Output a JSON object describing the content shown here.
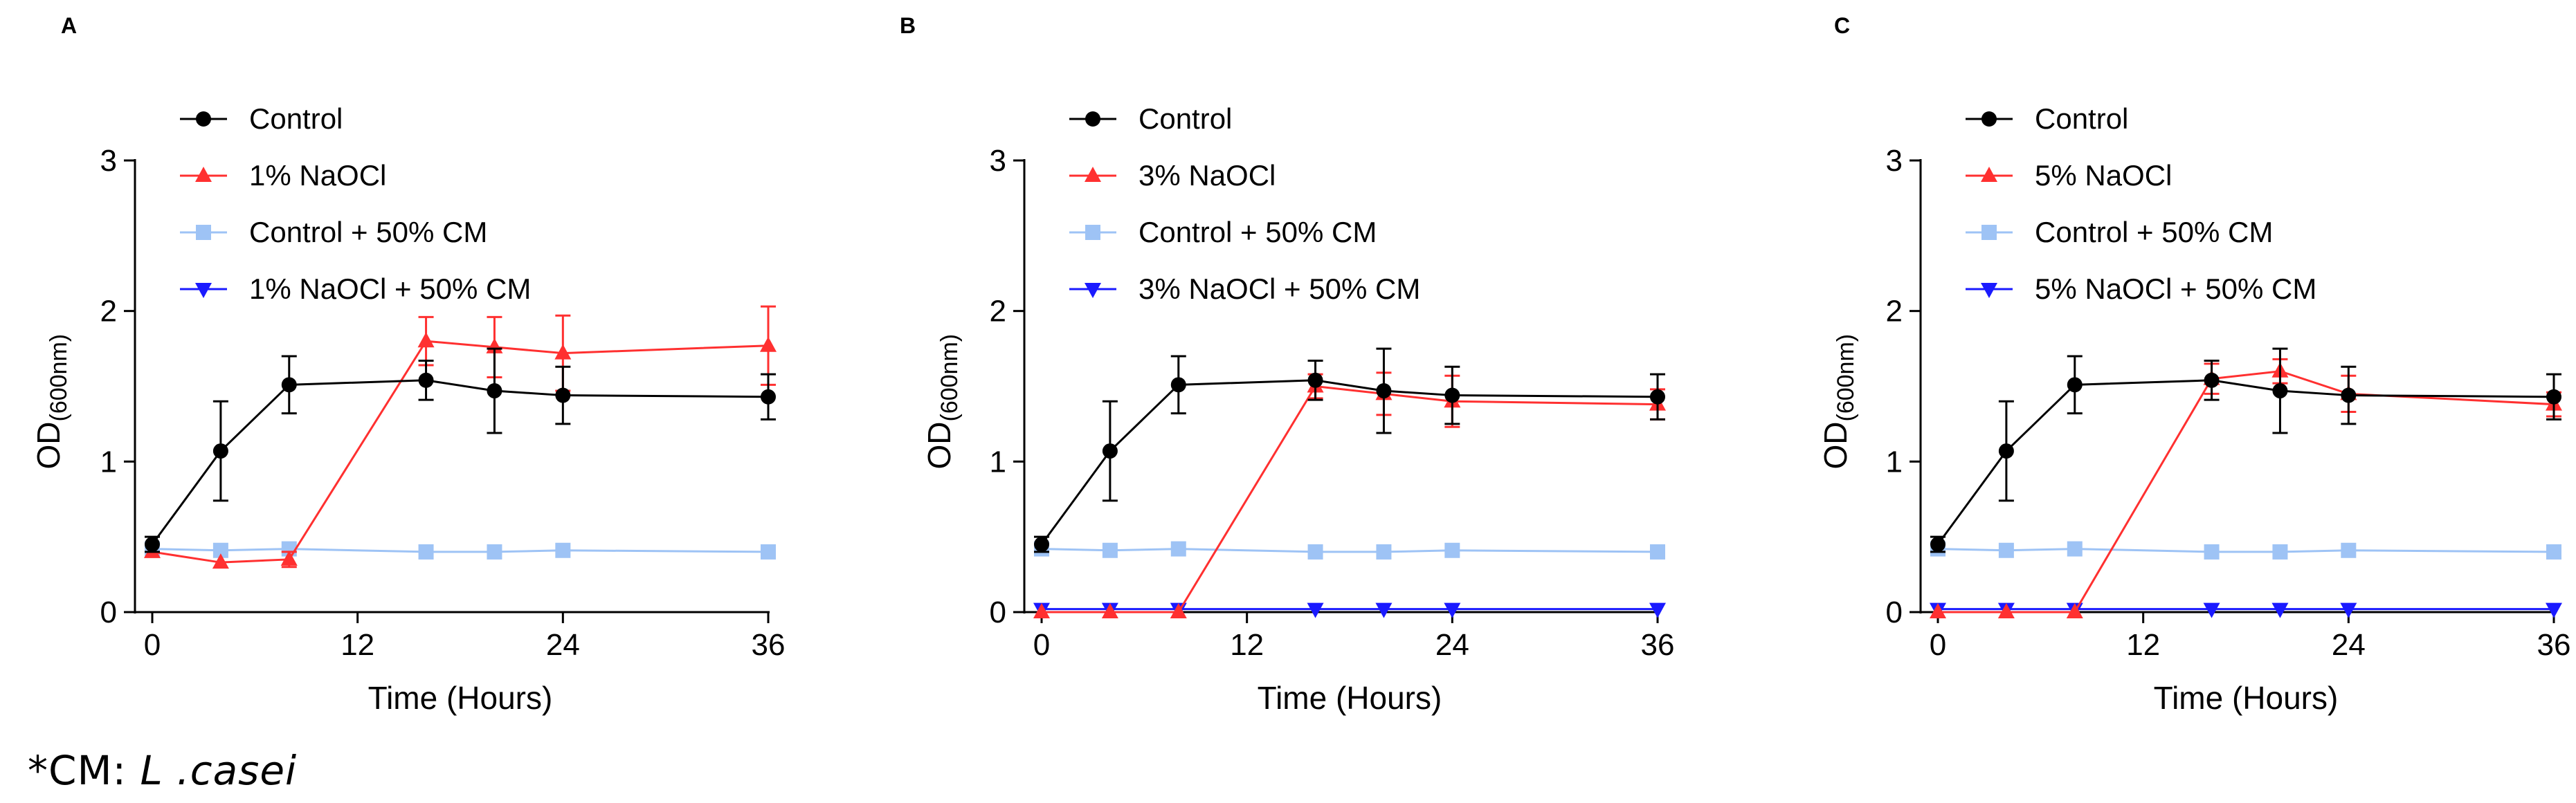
{
  "colors": {
    "control": "#000000",
    "naocl": "#ff3030",
    "control_cm": "#9ec3f5",
    "naocl_cm": "#1a1aff"
  },
  "footnote": {
    "prefix": "*CM: ",
    "organism": "L .casei"
  },
  "chart_data": [
    {
      "type": "line",
      "panel_label": "A",
      "xlabel": "Time (Hours)",
      "ylabel_main": "OD",
      "ylabel_sub": "(600nm)",
      "x_ticks": [
        "0",
        "12",
        "24",
        "36"
      ],
      "y_ticks": [
        "0",
        "1",
        "2",
        "3"
      ],
      "xlim": [
        0,
        36
      ],
      "ylim": [
        0,
        3
      ],
      "legend": [
        "Control",
        "1% NaOCl",
        "Control + 50% CM",
        "1% NaOCl + 50% CM"
      ],
      "series": [
        {
          "name": "Control",
          "marker": "circle",
          "color_key": "control",
          "x": [
            0,
            4,
            8,
            16,
            20,
            24,
            36
          ],
          "y": [
            0.45,
            1.07,
            1.51,
            1.54,
            1.47,
            1.44,
            1.43
          ],
          "err": [
            0.05,
            0.33,
            0.19,
            0.13,
            0.28,
            0.19,
            0.15
          ]
        },
        {
          "name": "1% NaOCl",
          "marker": "triangle-up",
          "color_key": "naocl",
          "x": [
            0,
            4,
            8,
            16,
            20,
            24,
            36
          ],
          "y": [
            0.4,
            0.33,
            0.35,
            1.8,
            1.76,
            1.72,
            1.77
          ],
          "err": [
            0.04,
            0.04,
            0.05,
            0.16,
            0.2,
            0.25,
            0.26
          ]
        },
        {
          "name": "Control + 50% CM",
          "marker": "square",
          "color_key": "control_cm",
          "x": [
            0,
            4,
            8,
            16,
            20,
            24,
            36
          ],
          "y": [
            0.42,
            0.41,
            0.42,
            0.4,
            0.4,
            0.41,
            0.4
          ],
          "err": [
            0.03,
            0.03,
            0.03,
            0.03,
            0.03,
            0.03,
            0.03
          ]
        },
        {
          "name": "1% NaOCl + 50% CM",
          "marker": "triangle-down",
          "color_key": "naocl_cm",
          "x": [],
          "y": [],
          "err": []
        }
      ]
    },
    {
      "type": "line",
      "panel_label": "B",
      "xlabel": "Time (Hours)",
      "ylabel_main": "OD",
      "ylabel_sub": "(600nm)",
      "x_ticks": [
        "0",
        "12",
        "24",
        "36"
      ],
      "y_ticks": [
        "0",
        "1",
        "2",
        "3"
      ],
      "xlim": [
        0,
        36
      ],
      "ylim": [
        0,
        3
      ],
      "legend": [
        "Control",
        "3% NaOCl",
        "Control + 50% CM",
        "3% NaOCl + 50% CM"
      ],
      "series": [
        {
          "name": "Control",
          "marker": "circle",
          "color_key": "control",
          "x": [
            0,
            4,
            8,
            16,
            20,
            24,
            36
          ],
          "y": [
            0.45,
            1.07,
            1.51,
            1.54,
            1.47,
            1.44,
            1.43
          ],
          "err": [
            0.05,
            0.33,
            0.19,
            0.13,
            0.28,
            0.19,
            0.15
          ]
        },
        {
          "name": "3% NaOCl",
          "marker": "triangle-up",
          "color_key": "naocl",
          "x": [
            0,
            4,
            8,
            16,
            20,
            24,
            36
          ],
          "y": [
            0.0,
            0.0,
            0.0,
            1.5,
            1.45,
            1.4,
            1.38
          ],
          "err": [
            0.02,
            0.02,
            0.02,
            0.08,
            0.14,
            0.17,
            0.1
          ]
        },
        {
          "name": "Control + 50% CM",
          "marker": "square",
          "color_key": "control_cm",
          "x": [
            0,
            4,
            8,
            16,
            20,
            24,
            36
          ],
          "y": [
            0.42,
            0.41,
            0.42,
            0.4,
            0.4,
            0.41,
            0.4
          ],
          "err": [
            0.03,
            0.03,
            0.03,
            0.03,
            0.03,
            0.03,
            0.03
          ]
        },
        {
          "name": "3% NaOCl + 50% CM",
          "marker": "triangle-down",
          "color_key": "naocl_cm",
          "x": [
            0,
            4,
            8,
            16,
            20,
            24,
            36
          ],
          "y": [
            0.02,
            0.02,
            0.02,
            0.02,
            0.02,
            0.02,
            0.02
          ],
          "err": [
            0.01,
            0.01,
            0.01,
            0.01,
            0.01,
            0.01,
            0.01
          ]
        }
      ]
    },
    {
      "type": "line",
      "panel_label": "C",
      "xlabel": "Time (Hours)",
      "ylabel_main": "OD",
      "ylabel_sub": "(600nm)",
      "x_ticks": [
        "0",
        "12",
        "24",
        "36"
      ],
      "y_ticks": [
        "0",
        "1",
        "2",
        "3"
      ],
      "xlim": [
        0,
        36
      ],
      "ylim": [
        0,
        3
      ],
      "legend": [
        "Control",
        "5% NaOCl",
        "Control + 50% CM",
        "5% NaOCl + 50% CM"
      ],
      "series": [
        {
          "name": "Control",
          "marker": "circle",
          "color_key": "control",
          "x": [
            0,
            4,
            8,
            16,
            20,
            24,
            36
          ],
          "y": [
            0.45,
            1.07,
            1.51,
            1.54,
            1.47,
            1.44,
            1.43
          ],
          "err": [
            0.05,
            0.33,
            0.19,
            0.13,
            0.28,
            0.19,
            0.15
          ]
        },
        {
          "name": "5% NaOCl",
          "marker": "triangle-up",
          "color_key": "naocl",
          "x": [
            0,
            4,
            8,
            16,
            20,
            24,
            36
          ],
          "y": [
            0.0,
            0.0,
            0.0,
            1.55,
            1.6,
            1.45,
            1.38
          ],
          "err": [
            0.02,
            0.02,
            0.02,
            0.1,
            0.08,
            0.12,
            0.08
          ]
        },
        {
          "name": "Control + 50% CM",
          "marker": "square",
          "color_key": "control_cm",
          "x": [
            0,
            4,
            8,
            16,
            20,
            24,
            36
          ],
          "y": [
            0.42,
            0.41,
            0.42,
            0.4,
            0.4,
            0.41,
            0.4
          ],
          "err": [
            0.03,
            0.03,
            0.03,
            0.03,
            0.03,
            0.03,
            0.03
          ]
        },
        {
          "name": "5% NaOCl + 50% CM",
          "marker": "triangle-down",
          "color_key": "naocl_cm",
          "x": [
            0,
            4,
            8,
            16,
            20,
            24,
            36
          ],
          "y": [
            0.02,
            0.02,
            0.02,
            0.02,
            0.02,
            0.02,
            0.02
          ],
          "err": [
            0.01,
            0.01,
            0.01,
            0.01,
            0.01,
            0.01,
            0.01
          ]
        }
      ]
    }
  ]
}
